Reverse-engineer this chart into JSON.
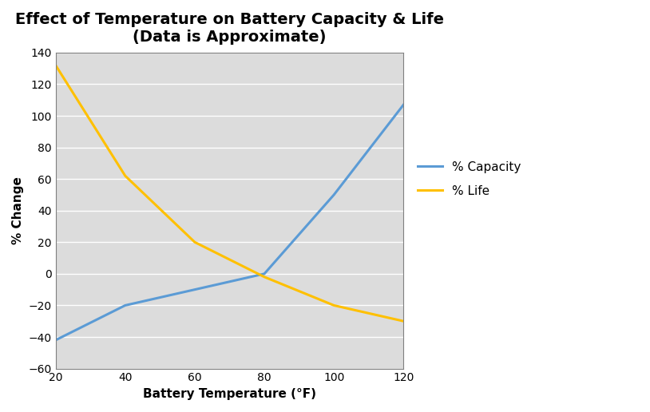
{
  "title_line1": "Effect of Temperature on Battery Capacity & Life",
  "title_line2": "(Data is Approximate)",
  "xlabel": "Battery Temperature (°F)",
  "ylabel": "% Change",
  "temp_x": [
    20,
    40,
    60,
    80,
    100,
    120
  ],
  "capacity_y": [
    -42,
    -20,
    -10,
    0,
    50,
    107
  ],
  "life_y": [
    132,
    62,
    20,
    -2,
    -20,
    -30
  ],
  "capacity_color": "#5B9BD5",
  "life_color": "#FFC000",
  "ylim": [
    -60,
    140
  ],
  "xlim": [
    20,
    120
  ],
  "xticks": [
    20,
    40,
    60,
    80,
    100,
    120
  ],
  "yticks": [
    -60,
    -40,
    -20,
    0,
    20,
    40,
    60,
    80,
    100,
    120,
    140
  ],
  "legend_capacity": "% Capacity",
  "legend_life": "% Life",
  "title_fontsize": 14,
  "axis_label_fontsize": 11,
  "tick_fontsize": 10,
  "legend_fontsize": 11,
  "line_width": 2.2,
  "background_color": "#FFFFFF",
  "plot_bg_color": "#DCDCDC",
  "grid_color": "#FFFFFF",
  "grid_linestyle": "-",
  "grid_linewidth": 1.0,
  "figure_width": 8.14,
  "figure_height": 5.16,
  "figure_dpi": 100
}
